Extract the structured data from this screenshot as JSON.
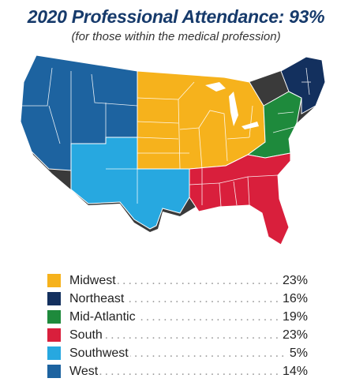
{
  "title": "2020 Professional Attendance: 93%",
  "subtitle": "(for those within the medical profession)",
  "colors": {
    "title": "#163a6b",
    "midwest": "#f6b21c",
    "northeast": "#13305e",
    "mid_atlantic": "#1e8a3c",
    "south": "#d91f3c",
    "southwest": "#27a8e0",
    "west": "#1d63a0",
    "outline": "#3a3a3a"
  },
  "legend": [
    {
      "region": "Midwest",
      "value": "23%",
      "color": "#f6b21c"
    },
    {
      "region": "Northeast",
      "value": "16%",
      "color": "#13305e"
    },
    {
      "region": "Mid-Atlantic",
      "value": "19%",
      "color": "#1e8a3c"
    },
    {
      "region": "South",
      "value": "23%",
      "color": "#d91f3c"
    },
    {
      "region": "Southwest",
      "value": "5%",
      "color": "#27a8e0"
    },
    {
      "region": "West",
      "value": "14%",
      "color": "#1d63a0"
    }
  ]
}
